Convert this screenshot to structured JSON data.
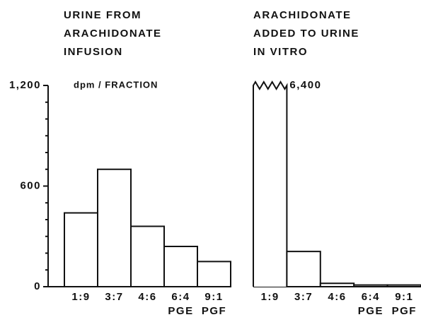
{
  "chart_data": [
    {
      "type": "bar",
      "title": [
        "URINE FROM",
        "ARACHIDONATE",
        "INFUSION"
      ],
      "y_label": "dpm / FRACTION",
      "categories": [
        "1:9",
        "3:7",
        "4:6",
        "6:4",
        "9:1"
      ],
      "category_sublabels": [
        null,
        null,
        null,
        "PGE",
        "PGF"
      ],
      "values": [
        440,
        700,
        360,
        240,
        150
      ],
      "color": "#ffffff",
      "ylim": [
        0,
        1200
      ],
      "yticks": [
        0,
        600,
        {
          "value": 1200,
          "label": "1,200"
        }
      ],
      "minor_yticks": [
        100,
        200,
        300,
        400,
        500,
        700,
        800,
        900,
        1000,
        1100
      ]
    },
    {
      "type": "bar",
      "title": [
        "ARACHIDONATE",
        "ADDED TO URINE",
        "IN VITRO"
      ],
      "categories": [
        "1:9",
        "3:7",
        "4:6",
        "6:4",
        "9:1"
      ],
      "category_sublabels": [
        null,
        null,
        null,
        "PGE",
        "PGF"
      ],
      "values": [
        6400,
        210,
        20,
        10,
        10
      ],
      "value_labels": [
        "6,400",
        null,
        null,
        null,
        null
      ],
      "color": "#ffffff",
      "ylim": [
        0,
        1200
      ],
      "broken_above_ylim": true
    }
  ]
}
